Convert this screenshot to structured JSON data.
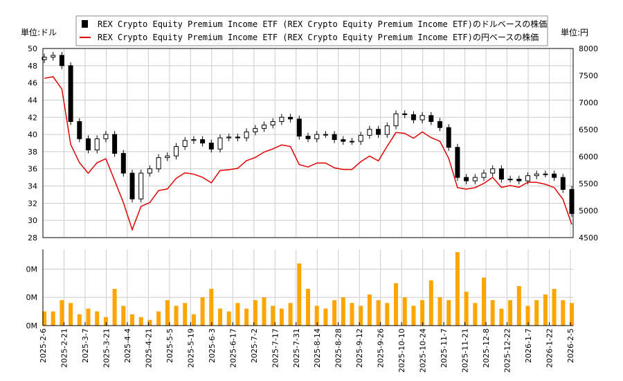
{
  "chart_data": [
    {
      "type": "candlestick+line",
      "left_unit_label": "単位:ドル",
      "right_unit_label": "単位:円",
      "legend": [
        {
          "name": "REX Crypto Equity Premium Income ETF (REX Crypto Equity Premium Income ETF)のドルベースの株価",
          "color": "#000000",
          "marker": "square"
        },
        {
          "name": "REX Crypto Equity Premium Income ETF (REX Crypto Equity Premium Income ETF)の円ベースの株価",
          "color": "#e00000",
          "marker": "line"
        }
      ],
      "legend_position": "top-center",
      "x_range": [
        "2025-2-6",
        "2026-2-5"
      ],
      "x_ticks": [
        "2025-2-6",
        "2025-2-21",
        "2025-3-7",
        "2025-3-21",
        "2025-4-4",
        "2025-4-21",
        "2025-5-5",
        "2025-5-19",
        "2025-6-3",
        "2025-6-17",
        "2025-7-2",
        "2025-7-17",
        "2025-7-31",
        "2025-8-14",
        "2025-8-28",
        "2025-9-12",
        "2025-9-26",
        "2025-10-10",
        "2025-10-24",
        "2025-11-7",
        "2025-11-21",
        "2025-12-8",
        "2025-12-22",
        "2026-1-7",
        "2026-1-22",
        "2026-2-5"
      ],
      "y_left": {
        "range": [
          28,
          50
        ],
        "ticks": [
          "28",
          "30",
          "32",
          "34",
          "36",
          "38",
          "40",
          "42",
          "44",
          "46",
          "48",
          "50"
        ]
      },
      "y_right": {
        "range": [
          4500,
          8000
        ],
        "ticks": [
          "4500",
          "5000",
          "5500",
          "6000",
          "6500",
          "7000",
          "7500",
          "8000"
        ]
      },
      "grid": true,
      "dollar_close": [
        49,
        49.2,
        48,
        41.5,
        39.5,
        38.2,
        39.5,
        40,
        37.8,
        35.5,
        32.5,
        35.5,
        36,
        37.3,
        37.5,
        38.6,
        39.3,
        39.4,
        39,
        38.3,
        39.6,
        39.7,
        39.6,
        40.3,
        40.7,
        41.1,
        41.5,
        42,
        41.8,
        39.8,
        39.5,
        40,
        40,
        39.4,
        39.2,
        39.2,
        39.9,
        40.6,
        40,
        41,
        42.4,
        42.3,
        41.7,
        42.2,
        41.5,
        40.8,
        38.5,
        35,
        34.6,
        35,
        35.5,
        36,
        34.8,
        34.8,
        34.6,
        35.2,
        35.4,
        35.4,
        35,
        33.6,
        30.8
      ],
      "yen_close": [
        7448,
        7478,
        7248,
        6225,
        5886,
        5692,
        5886,
        5960,
        5557,
        5148,
        4648,
        5077,
        5148,
        5371,
        5400,
        5597,
        5699,
        5674,
        5616,
        5515,
        5742,
        5757,
        5782,
        5924,
        5983,
        6083,
        6142,
        6216,
        6186,
        5851,
        5807,
        5880,
        5880,
        5792,
        5762,
        5762,
        5905,
        6009,
        5920,
        6191,
        6445,
        6430,
        6338,
        6457,
        6350,
        6283,
        5968,
        5425,
        5398,
        5425,
        5503,
        5616,
        5429,
        5464,
        5432,
        5526,
        5522,
        5487,
        5425,
        5208,
        4743
      ]
    },
    {
      "type": "bar",
      "y_ticks": [
        "0M",
        "0M",
        "0M"
      ],
      "color": "#ffa500",
      "grid": true,
      "volume": [
        0.5,
        0.5,
        0.9,
        0.8,
        0.4,
        0.6,
        0.5,
        0.3,
        1.3,
        0.7,
        0.4,
        0.3,
        0.2,
        0.5,
        0.9,
        0.7,
        0.8,
        0.4,
        1.0,
        1.3,
        0.6,
        0.5,
        0.8,
        0.6,
        0.9,
        1.0,
        0.7,
        0.6,
        0.8,
        2.2,
        1.3,
        0.7,
        0.6,
        0.9,
        1.0,
        0.8,
        0.7,
        1.1,
        0.9,
        0.8,
        1.5,
        1.0,
        0.7,
        0.9,
        1.6,
        1.0,
        0.9,
        2.6,
        1.2,
        0.8,
        1.7,
        0.9,
        0.6,
        0.9,
        1.4,
        0.7,
        0.9,
        1.1,
        1.3,
        0.9,
        0.8
      ]
    }
  ]
}
